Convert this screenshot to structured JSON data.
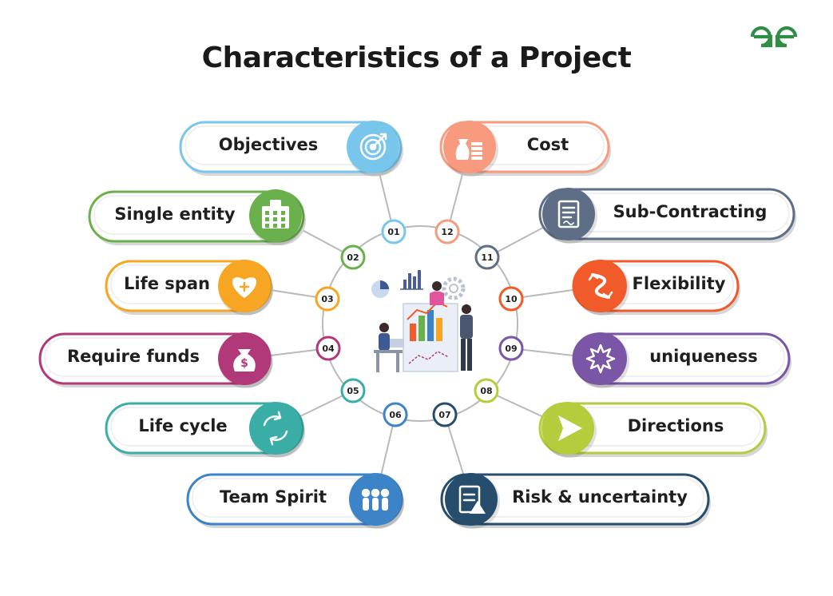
{
  "title": "Characteristics of a Project",
  "logo_text": "GfG",
  "colors": {
    "line": "#b9b9b9",
    "brand": "#2f8d46"
  },
  "items": [
    {
      "num": "01",
      "label": "Objectives",
      "color": "#79c6ec",
      "icon": "target-icon"
    },
    {
      "num": "02",
      "label": "Single entity",
      "color": "#6ab04c",
      "icon": "building-icon"
    },
    {
      "num": "03",
      "label": "Life span",
      "color": "#f6a623",
      "icon": "heart-plus-icon"
    },
    {
      "num": "04",
      "label": "Require funds",
      "color": "#b1397a",
      "icon": "money-bag-icon"
    },
    {
      "num": "05",
      "label": "Life cycle",
      "color": "#3aaea6",
      "icon": "cycle-arrows-icon"
    },
    {
      "num": "06",
      "label": "Team Spirit",
      "color": "#3d83c7",
      "icon": "team-icon"
    },
    {
      "num": "07",
      "label": "Risk & uncertainty",
      "color": "#264d6c",
      "icon": "risk-clipboard-icon"
    },
    {
      "num": "08",
      "label": "Directions",
      "color": "#b5cc3c",
      "icon": "direction-arrow-icon"
    },
    {
      "num": "09",
      "label": "uniqueness",
      "color": "#7b55a6",
      "icon": "star-burst-icon"
    },
    {
      "num": "10",
      "label": "Flexibility",
      "color": "#f15a29",
      "icon": "flex-arrows-icon"
    },
    {
      "num": "11",
      "label": "Sub-Contracting",
      "color": "#5e6e86",
      "icon": "contract-document-icon"
    },
    {
      "num": "12",
      "label": "Cost",
      "color": "#f79a7e",
      "icon": "cost-money-icon"
    }
  ]
}
